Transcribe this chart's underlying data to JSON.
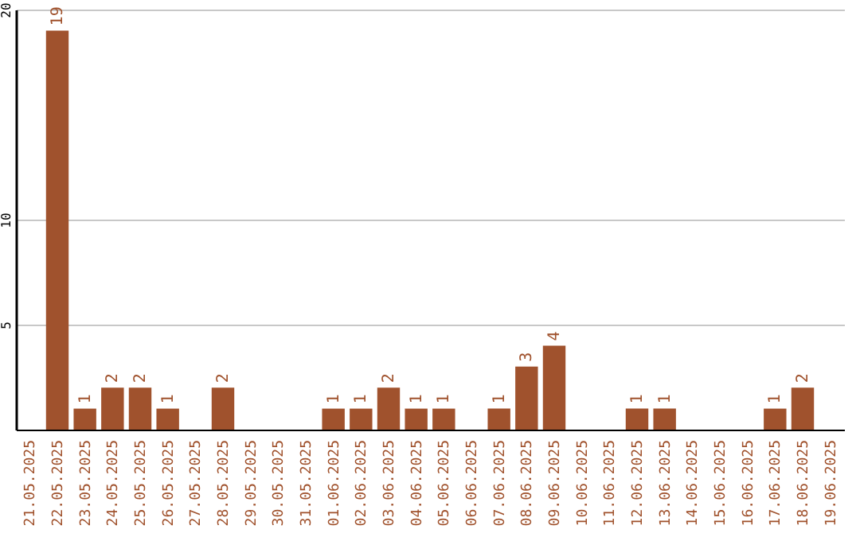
{
  "chart_data": {
    "type": "bar",
    "categories": [
      "21.05.2025",
      "22.05.2025",
      "23.05.2025",
      "24.05.2025",
      "25.05.2025",
      "26.05.2025",
      "27.05.2025",
      "28.05.2025",
      "29.05.2025",
      "30.05.2025",
      "31.05.2025",
      "01.06.2025",
      "02.06.2025",
      "03.06.2025",
      "04.06.2025",
      "05.06.2025",
      "06.06.2025",
      "07.06.2025",
      "08.06.2025",
      "09.06.2025",
      "10.06.2025",
      "11.06.2025",
      "12.06.2025",
      "13.06.2025",
      "14.06.2025",
      "15.06.2025",
      "16.06.2025",
      "17.06.2025",
      "18.06.2025",
      "19.06.2025"
    ],
    "values": [
      0,
      19,
      1,
      2,
      2,
      1,
      0,
      2,
      0,
      0,
      0,
      1,
      1,
      2,
      1,
      1,
      0,
      1,
      3,
      4,
      0,
      0,
      1,
      1,
      0,
      0,
      0,
      1,
      2,
      0
    ],
    "value_labels": [
      null,
      "19",
      "1",
      "2",
      "2",
      "1",
      null,
      "2",
      null,
      null,
      null,
      "1",
      "1",
      "2",
      "1",
      "1",
      null,
      "1",
      "3",
      "4",
      null,
      null,
      "1",
      "1",
      null,
      null,
      null,
      "1",
      "2",
      null
    ],
    "color": "#a0522d",
    "ylim": [
      0,
      20
    ],
    "yticks": [
      5,
      10,
      20
    ],
    "grid": "y"
  }
}
